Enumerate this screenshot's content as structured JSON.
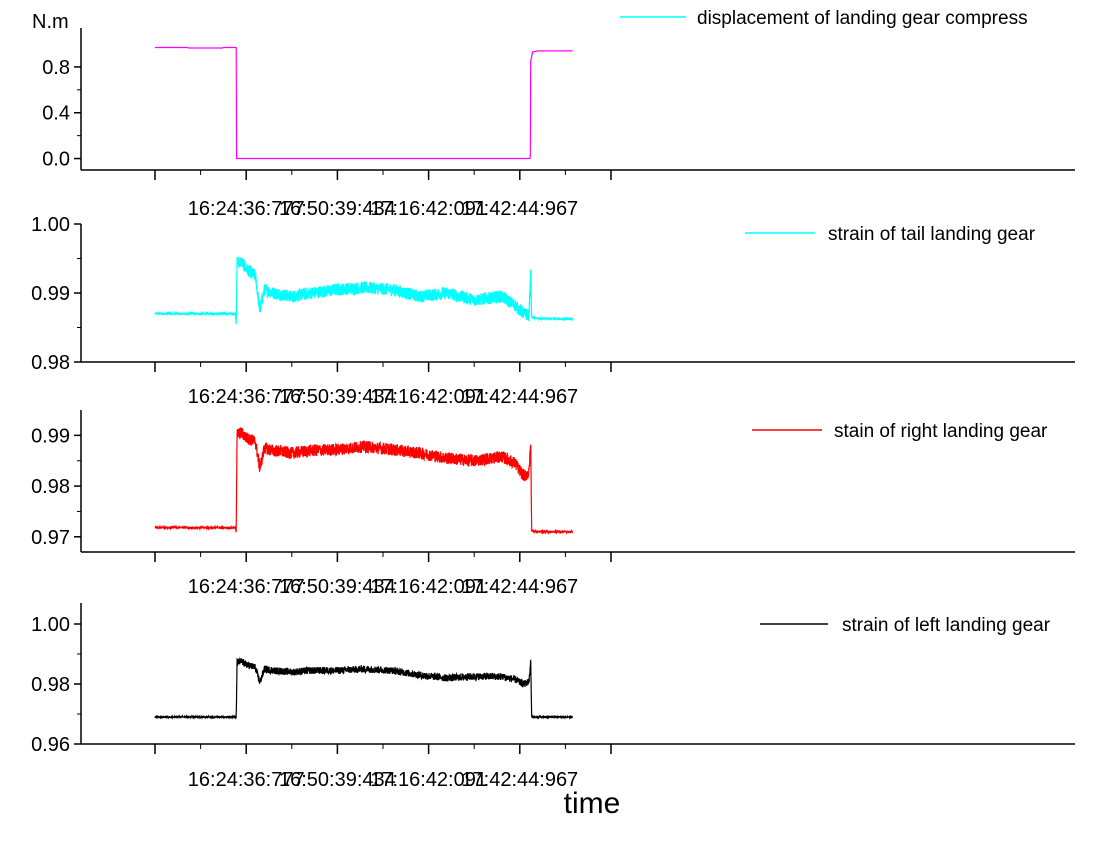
{
  "figure": {
    "xlabel": "time",
    "x_range": [
      0,
      1000
    ],
    "x_ticks": [
      {
        "x": 0,
        "label": ""
      },
      {
        "x": 100,
        "label": "16:24:36:777"
      },
      {
        "x": 200,
        "label": "16:50:39:434"
      },
      {
        "x": 300,
        "label": "17:16:42:091"
      },
      {
        "x": 400,
        "label": "17:42:44:967"
      },
      {
        "x": 500,
        "label": ""
      }
    ]
  },
  "chart_data": [
    {
      "type": "line",
      "ylabel": "N.m",
      "ylim": [
        -0.1,
        1.14
      ],
      "y_ticks": [
        0.0,
        0.4,
        0.8
      ],
      "y_tick_labels": [
        "0.0",
        "0.4",
        "0.8"
      ],
      "series": [
        {
          "name": "displacement of landing gear compress",
          "legend_color": "#00ffff",
          "color": "#ff00ff",
          "noise": 0,
          "x": [
            0,
            36,
            37,
            74,
            75,
            89,
            89.5,
            411,
            411.5,
            412,
            414,
            420,
            458
          ],
          "y": [
            0.97,
            0.97,
            0.965,
            0.965,
            0.97,
            0.97,
            0.0,
            0.0,
            0.02,
            0.85,
            0.93,
            0.94,
            0.94
          ]
        }
      ]
    },
    {
      "type": "line",
      "ylim": [
        0.98,
        1.0
      ],
      "y_ticks": [
        0.98,
        0.99,
        1.0
      ],
      "y_tick_labels": [
        "0.98",
        "0.99",
        "1.00"
      ],
      "series": [
        {
          "name": "strain of tail landing gear",
          "color": "#00ffff",
          "noise": 0.0009,
          "x": [
            0,
            88,
            89,
            90,
            95,
            100,
            110,
            115,
            120,
            130,
            150,
            170,
            200,
            230,
            260,
            290,
            320,
            350,
            380,
            395,
            400,
            405,
            410,
            412,
            413,
            420,
            458
          ],
          "y": [
            0.987,
            0.987,
            0.9855,
            0.9945,
            0.9945,
            0.9935,
            0.9925,
            0.9875,
            0.9905,
            0.99,
            0.9895,
            0.99,
            0.9905,
            0.9908,
            0.9905,
            0.9895,
            0.99,
            0.989,
            0.9895,
            0.9882,
            0.9875,
            0.987,
            0.9868,
            0.993,
            0.9865,
            0.9863,
            0.9862
          ]
        }
      ]
    },
    {
      "type": "line",
      "ylim": [
        0.967,
        0.995
      ],
      "y_ticks": [
        0.97,
        0.98,
        0.99
      ],
      "y_tick_labels": [
        "0.97",
        "0.98",
        "0.99"
      ],
      "series": [
        {
          "name": "stain of right landing gear",
          "color": "#ff0000",
          "noise": 0.0012,
          "x": [
            0,
            88,
            89,
            90,
            95,
            100,
            110,
            115,
            120,
            130,
            150,
            170,
            200,
            230,
            260,
            290,
            320,
            350,
            380,
            395,
            400,
            405,
            410,
            412,
            413,
            420,
            458
          ],
          "y": [
            0.9718,
            0.9718,
            0.971,
            0.9902,
            0.9905,
            0.9895,
            0.9888,
            0.9835,
            0.9875,
            0.987,
            0.9865,
            0.987,
            0.9872,
            0.9878,
            0.9872,
            0.9865,
            0.9855,
            0.985,
            0.9858,
            0.9845,
            0.983,
            0.982,
            0.9825,
            0.9885,
            0.9712,
            0.971,
            0.971
          ]
        }
      ]
    },
    {
      "type": "line",
      "ylim": [
        0.96,
        1.007
      ],
      "y_ticks": [
        0.96,
        0.98,
        1.0
      ],
      "y_tick_labels": [
        "0.96",
        "0.98",
        "1.00"
      ],
      "series": [
        {
          "name": "strain of left landing gear",
          "color": "#000000",
          "noise": 0.0012,
          "x": [
            0,
            88,
            89,
            90,
            95,
            100,
            110,
            115,
            120,
            130,
            150,
            170,
            200,
            230,
            260,
            290,
            320,
            350,
            380,
            395,
            400,
            405,
            410,
            412,
            413,
            420,
            458
          ],
          "y": [
            0.969,
            0.969,
            0.9685,
            0.987,
            0.9875,
            0.9865,
            0.9855,
            0.9805,
            0.985,
            0.9845,
            0.984,
            0.9845,
            0.9845,
            0.985,
            0.9845,
            0.983,
            0.982,
            0.9825,
            0.9825,
            0.9815,
            0.9805,
            0.98,
            0.9808,
            0.9875,
            0.969,
            0.969,
            0.969
          ]
        }
      ]
    }
  ]
}
